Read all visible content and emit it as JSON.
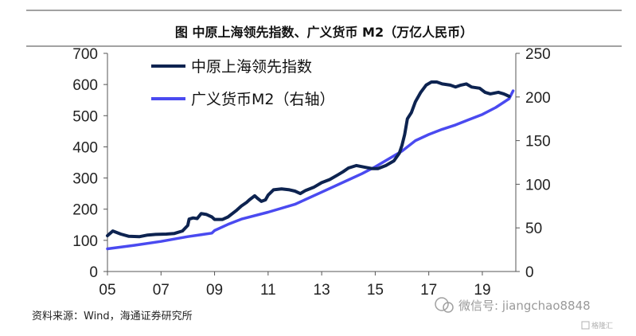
{
  "title": "图 中原上海领先指数、广义货币 M2（万亿人民币）",
  "source": "资料来源：Wind，海通证券研究所",
  "watermark": {
    "text": "微信号: jiangchao8848",
    "corner": "格隆汇"
  },
  "chart_data": {
    "type": "line",
    "x_ticks": [
      "05",
      "07",
      "09",
      "11",
      "13",
      "15",
      "17",
      "19"
    ],
    "y_left": {
      "range": [
        0,
        700
      ],
      "ticks": [
        "0",
        "100",
        "200",
        "300",
        "400",
        "500",
        "600",
        "700"
      ]
    },
    "y_right": {
      "range": [
        0,
        250
      ],
      "ticks": [
        "0",
        "50",
        "100",
        "150",
        "200",
        "250"
      ]
    },
    "grid": false,
    "legend_position": "top-left",
    "series": [
      {
        "name": "中原上海领先指数",
        "axis": "left",
        "color": "#0d2350",
        "points": [
          [
            2005.0,
            115
          ],
          [
            2005.2,
            130
          ],
          [
            2005.5,
            120
          ],
          [
            2005.8,
            113
          ],
          [
            2006.2,
            112
          ],
          [
            2006.5,
            117
          ],
          [
            2006.8,
            119
          ],
          [
            2007.2,
            120
          ],
          [
            2007.5,
            122
          ],
          [
            2007.8,
            130
          ],
          [
            2008.0,
            148
          ],
          [
            2008.05,
            168
          ],
          [
            2008.2,
            172
          ],
          [
            2008.35,
            170
          ],
          [
            2008.5,
            186
          ],
          [
            2008.7,
            183
          ],
          [
            2008.9,
            175
          ],
          [
            2009.0,
            167
          ],
          [
            2009.3,
            167
          ],
          [
            2009.5,
            175
          ],
          [
            2009.8,
            195
          ],
          [
            2010.0,
            210
          ],
          [
            2010.2,
            222
          ],
          [
            2010.3,
            230
          ],
          [
            2010.5,
            243
          ],
          [
            2010.6,
            235
          ],
          [
            2010.75,
            225
          ],
          [
            2010.9,
            230
          ],
          [
            2011.0,
            245
          ],
          [
            2011.2,
            262
          ],
          [
            2011.5,
            265
          ],
          [
            2011.8,
            262
          ],
          [
            2012.0,
            258
          ],
          [
            2012.2,
            250
          ],
          [
            2012.4,
            260
          ],
          [
            2012.7,
            270
          ],
          [
            2013.0,
            285
          ],
          [
            2013.3,
            295
          ],
          [
            2013.6,
            310
          ],
          [
            2013.8,
            320
          ],
          [
            2014.0,
            332
          ],
          [
            2014.3,
            340
          ],
          [
            2014.6,
            335
          ],
          [
            2014.9,
            330
          ],
          [
            2015.1,
            330
          ],
          [
            2015.4,
            340
          ],
          [
            2015.7,
            355
          ],
          [
            2015.9,
            380
          ],
          [
            2016.0,
            405
          ],
          [
            2016.1,
            440
          ],
          [
            2016.2,
            490
          ],
          [
            2016.35,
            510
          ],
          [
            2016.5,
            545
          ],
          [
            2016.7,
            575
          ],
          [
            2016.9,
            598
          ],
          [
            2017.1,
            608
          ],
          [
            2017.3,
            608
          ],
          [
            2017.5,
            602
          ],
          [
            2017.8,
            598
          ],
          [
            2018.0,
            592
          ],
          [
            2018.2,
            598
          ],
          [
            2018.4,
            602
          ],
          [
            2018.6,
            592
          ],
          [
            2018.9,
            588
          ],
          [
            2019.1,
            575
          ],
          [
            2019.3,
            570
          ],
          [
            2019.6,
            575
          ],
          [
            2019.8,
            570
          ],
          [
            2020.0,
            562
          ]
        ]
      },
      {
        "name": "广义货币M2（右轴）",
        "axis": "right",
        "color": "#4a4af0",
        "points": [
          [
            2005.0,
            26
          ],
          [
            2006.0,
            30
          ],
          [
            2007.0,
            34.5
          ],
          [
            2008.0,
            40
          ],
          [
            2008.9,
            44
          ],
          [
            2009.0,
            47
          ],
          [
            2009.5,
            54
          ],
          [
            2010.0,
            60
          ],
          [
            2011.0,
            68
          ],
          [
            2012.0,
            77
          ],
          [
            2013.0,
            91
          ],
          [
            2014.0,
            105
          ],
          [
            2014.5,
            112
          ],
          [
            2015.0,
            120
          ],
          [
            2015.5,
            129
          ],
          [
            2016.0,
            138
          ],
          [
            2016.5,
            150
          ],
          [
            2017.0,
            157
          ],
          [
            2017.5,
            163
          ],
          [
            2018.0,
            168
          ],
          [
            2018.5,
            174
          ],
          [
            2019.0,
            180
          ],
          [
            2019.5,
            188
          ],
          [
            2020.0,
            198
          ],
          [
            2020.15,
            207
          ]
        ]
      }
    ]
  }
}
